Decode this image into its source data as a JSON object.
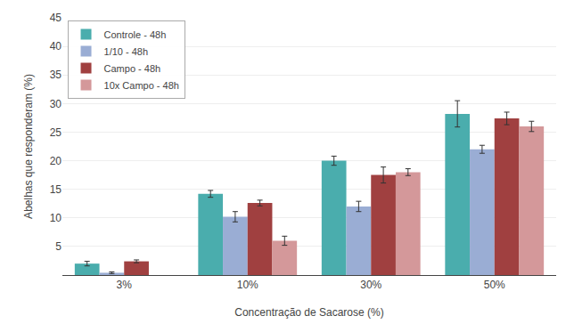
{
  "chart_data": {
    "type": "bar",
    "categories": [
      "3%",
      "10%",
      "30%",
      "50%"
    ],
    "series": [
      {
        "name": "Controle - 48h",
        "color": "#4aadad",
        "values": [
          2.0,
          14.2,
          20.0,
          28.2
        ],
        "errors": [
          0.4,
          0.6,
          0.8,
          2.3
        ]
      },
      {
        "name": "1/10 - 48h",
        "color": "#9aadd4",
        "values": [
          0.4,
          10.2,
          12.0,
          22.0
        ],
        "errors": [
          0.15,
          0.9,
          0.9,
          0.7
        ]
      },
      {
        "name": "Campo - 48h",
        "color": "#a04040",
        "values": [
          2.4,
          12.6,
          17.5,
          27.4
        ],
        "errors": [
          0.25,
          0.5,
          1.4,
          1.1
        ]
      },
      {
        "name": "10x Campo - 48h",
        "color": "#d4989a",
        "values": [
          null,
          6.0,
          18.0,
          26.0
        ],
        "errors": [
          null,
          0.8,
          0.6,
          0.9
        ]
      }
    ],
    "xlabel": "Concentração de Sacarose (%)",
    "ylabel": "Abelhas que responderam (%)",
    "ylim": [
      0,
      45
    ],
    "yticks": [
      5,
      10,
      15,
      20,
      25,
      30,
      35,
      40,
      45
    ],
    "grid": true,
    "legend": "upper left"
  }
}
